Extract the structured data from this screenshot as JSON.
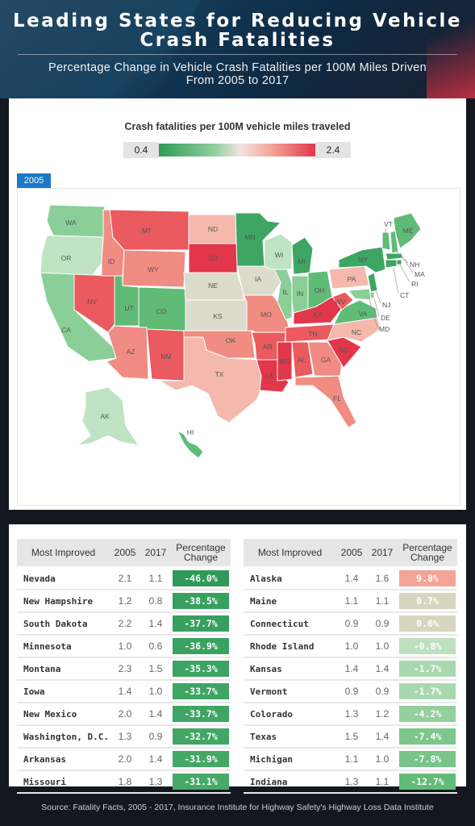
{
  "header": {
    "title_line1": "Leading States for Reducing Vehicle",
    "title_line2": "Crash Fatalities",
    "subtitle_line1": "Percentage Change in Vehicle Crash Fatalities per 100M Miles Driven",
    "subtitle_line2": "From 2005 to 2017"
  },
  "map": {
    "legend_title": "Crash fatalities per 100M vehicle miles traveled",
    "legend_min": "0.4",
    "legend_max": "2.4",
    "year_tab": "2005",
    "colors": {
      "dark_red": "#e2364a",
      "red": "#ea5a5e",
      "salmon": "#f08c82",
      "light_salmon": "#f5b8ad",
      "neutral": "#dcdccd",
      "light_green": "#bfe3c3",
      "green": "#8acf97",
      "mid_green": "#5fbb76",
      "dark_green": "#3ea563"
    },
    "states": [
      {
        "code": "WA",
        "color": "green"
      },
      {
        "code": "OR",
        "color": "light_green"
      },
      {
        "code": "CA",
        "color": "green"
      },
      {
        "code": "NV",
        "color": "red"
      },
      {
        "code": "ID",
        "color": "salmon"
      },
      {
        "code": "MT",
        "color": "red"
      },
      {
        "code": "WY",
        "color": "salmon"
      },
      {
        "code": "UT",
        "color": "mid_green"
      },
      {
        "code": "CO",
        "color": "mid_green"
      },
      {
        "code": "AZ",
        "color": "salmon"
      },
      {
        "code": "NM",
        "color": "red"
      },
      {
        "code": "ND",
        "color": "light_salmon"
      },
      {
        "code": "SD",
        "color": "dark_red"
      },
      {
        "code": "NE",
        "color": "neutral"
      },
      {
        "code": "KS",
        "color": "neutral"
      },
      {
        "code": "OK",
        "color": "salmon"
      },
      {
        "code": "TX",
        "color": "light_salmon"
      },
      {
        "code": "MN",
        "color": "dark_green"
      },
      {
        "code": "IA",
        "color": "neutral"
      },
      {
        "code": "MO",
        "color": "salmon"
      },
      {
        "code": "AR",
        "color": "red"
      },
      {
        "code": "LA",
        "color": "dark_red"
      },
      {
        "code": "WI",
        "color": "light_green"
      },
      {
        "code": "IL",
        "color": "green"
      },
      {
        "code": "MI",
        "color": "dark_green"
      },
      {
        "code": "IN",
        "color": "green"
      },
      {
        "code": "OH",
        "color": "mid_green"
      },
      {
        "code": "KY",
        "color": "dark_red"
      },
      {
        "code": "TN",
        "color": "red"
      },
      {
        "code": "MS",
        "color": "dark_red"
      },
      {
        "code": "AL",
        "color": "red"
      },
      {
        "code": "GA",
        "color": "salmon"
      },
      {
        "code": "FL",
        "color": "salmon"
      },
      {
        "code": "SC",
        "color": "dark_red"
      },
      {
        "code": "NC",
        "color": "light_salmon"
      },
      {
        "code": "VA",
        "color": "mid_green"
      },
      {
        "code": "WV",
        "color": "red"
      },
      {
        "code": "PA",
        "color": "light_salmon"
      },
      {
        "code": "NY",
        "color": "dark_green"
      },
      {
        "code": "VT",
        "color": "mid_green"
      },
      {
        "code": "ME",
        "color": "mid_green"
      },
      {
        "code": "NH",
        "color": "mid_green"
      },
      {
        "code": "MA",
        "color": "dark_green"
      },
      {
        "code": "RI",
        "color": "dark_green"
      },
      {
        "code": "CT",
        "color": "dark_green"
      },
      {
        "code": "NJ",
        "color": "dark_green"
      },
      {
        "code": "DE",
        "color": "green"
      },
      {
        "code": "MD",
        "color": "green"
      },
      {
        "code": "AK",
        "color": "light_green"
      },
      {
        "code": "HI",
        "color": "mid_green"
      }
    ]
  },
  "tables": {
    "headers": {
      "state": "Most Improved",
      "y2005": "2005",
      "y2017": "2017",
      "pct_line1": "Percentage",
      "pct_line2": "Change"
    },
    "left": [
      {
        "state": "Nevada",
        "y2005": "2.1",
        "y2017": "1.1",
        "pct": "-46.0%",
        "color": "#2f9a58"
      },
      {
        "state": "New Hampshire",
        "y2005": "1.2",
        "y2017": "0.8",
        "pct": "-38.5%",
        "color": "#38a05f"
      },
      {
        "state": "South Dakota",
        "y2005": "2.2",
        "y2017": "1.4",
        "pct": "-37.7%",
        "color": "#38a05f"
      },
      {
        "state": "Minnesota",
        "y2005": "1.0",
        "y2017": "0.6",
        "pct": "-36.9%",
        "color": "#3aa261"
      },
      {
        "state": "Montana",
        "y2005": "2.3",
        "y2017": "1.5",
        "pct": "-35.3%",
        "color": "#3ca462"
      },
      {
        "state": "Iowa",
        "y2005": "1.4",
        "y2017": "1.0",
        "pct": "-33.7%",
        "color": "#3ea563"
      },
      {
        "state": "New Mexico",
        "y2005": "2.0",
        "y2017": "1.4",
        "pct": "-33.7%",
        "color": "#3ea563"
      },
      {
        "state": "Washington, D.C.",
        "y2005": "1.3",
        "y2017": "0.9",
        "pct": "-32.7%",
        "color": "#41a765"
      },
      {
        "state": "Arkansas",
        "y2005": "2.0",
        "y2017": "1.4",
        "pct": "-31.9%",
        "color": "#43a866"
      },
      {
        "state": "Missouri",
        "y2005": "1.8",
        "y2017": "1.3",
        "pct": "-31.1%",
        "color": "#45aa68"
      }
    ],
    "right": [
      {
        "state": "Alaska",
        "y2005": "1.4",
        "y2017": "1.6",
        "pct": "9.8%",
        "color": "#f4a497"
      },
      {
        "state": "Maine",
        "y2005": "1.1",
        "y2017": "1.1",
        "pct": "0.7%",
        "color": "#d6d6c0"
      },
      {
        "state": "Connecticut",
        "y2005": "0.9",
        "y2017": "0.9",
        "pct": "0.6%",
        "color": "#d6d6c0"
      },
      {
        "state": "Rhode Island",
        "y2005": "1.0",
        "y2017": "1.0",
        "pct": "-0.8%",
        "color": "#bfe0c0"
      },
      {
        "state": "Kansas",
        "y2005": "1.4",
        "y2017": "1.4",
        "pct": "-1.7%",
        "color": "#a9d8ae"
      },
      {
        "state": "Vermont",
        "y2005": "0.9",
        "y2017": "0.9",
        "pct": "-1.7%",
        "color": "#a9d8ae"
      },
      {
        "state": "Colorado",
        "y2005": "1.3",
        "y2017": "1.2",
        "pct": "-4.2%",
        "color": "#94cf9d"
      },
      {
        "state": "Texas",
        "y2005": "1.5",
        "y2017": "1.4",
        "pct": "-7.4%",
        "color": "#7dc78c"
      },
      {
        "state": "Michigan",
        "y2005": "1.1",
        "y2017": "1.0",
        "pct": "-7.8%",
        "color": "#78c489"
      },
      {
        "state": "Indiana",
        "y2005": "1.3",
        "y2017": "1.1",
        "pct": "-12.7%",
        "color": "#62bb77"
      }
    ]
  },
  "footer": {
    "source": "Source: Fatality Facts, 2005 - 2017, Insurance Institute for Highway Safety's Highway Loss Data Institute"
  }
}
